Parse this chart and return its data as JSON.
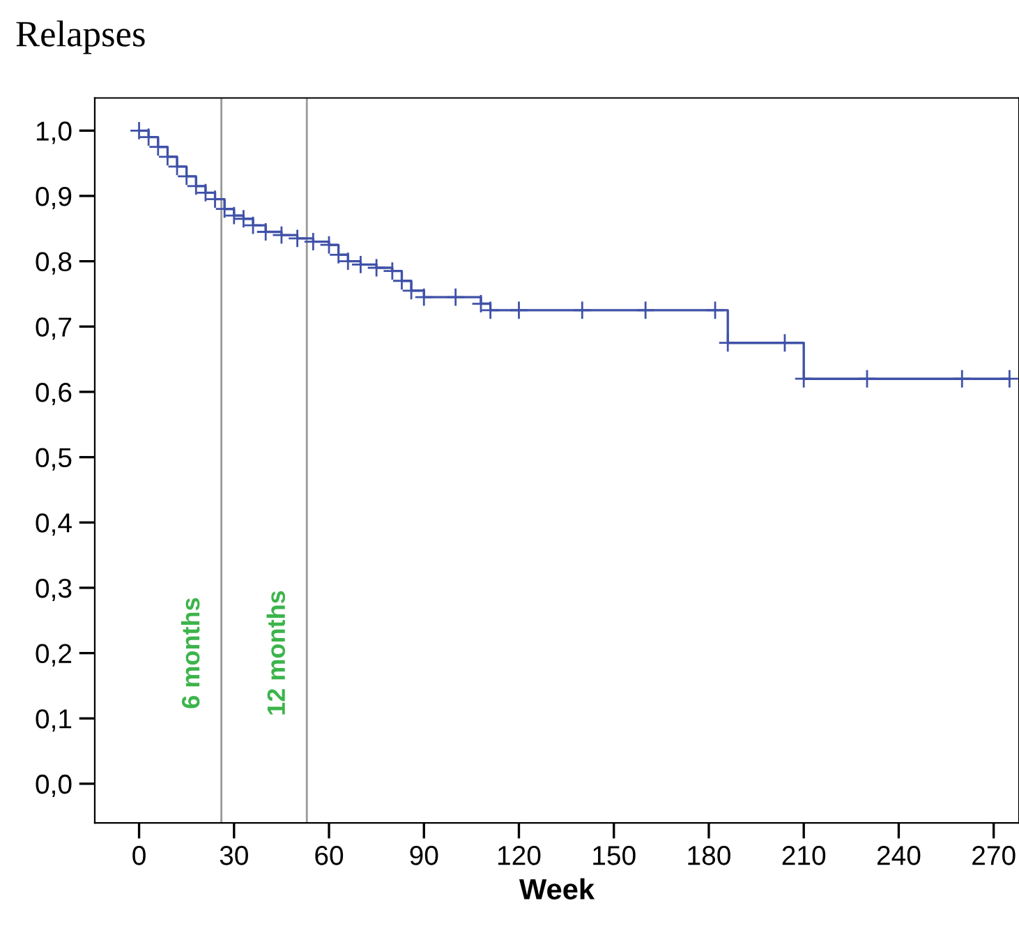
{
  "chart_data": {
    "type": "step",
    "title": "Relapses",
    "xlabel": "Week",
    "x": [
      0,
      3,
      6,
      9,
      12,
      15,
      18,
      21,
      24,
      27,
      30,
      33,
      36,
      40,
      45,
      50,
      55,
      60,
      63,
      66,
      70,
      75,
      80,
      83,
      86,
      90,
      100,
      108,
      111,
      120,
      140,
      160,
      182,
      186,
      204,
      210,
      230,
      260,
      275
    ],
    "series": [
      {
        "color": "#3f51a8",
        "values": [
          1.0,
          0.99,
          0.975,
          0.96,
          0.945,
          0.93,
          0.915,
          0.905,
          0.895,
          0.88,
          0.87,
          0.865,
          0.855,
          0.845,
          0.84,
          0.835,
          0.83,
          0.825,
          0.81,
          0.8,
          0.795,
          0.79,
          0.785,
          0.77,
          0.755,
          0.745,
          0.745,
          0.735,
          0.725,
          0.725,
          0.725,
          0.725,
          0.725,
          0.675,
          0.675,
          0.62,
          0.62,
          0.62,
          0.62
        ]
      }
    ],
    "marker": "cross",
    "line_style": "solid",
    "grid": false,
    "legend": false,
    "xlim": [
      -14,
      278
    ],
    "xticks": [
      0,
      30,
      60,
      90,
      120,
      150,
      180,
      210,
      240,
      270
    ],
    "ylim": [
      -0.06,
      1.05
    ],
    "yticks": [
      {
        "value": 0.0,
        "label": "0,0"
      },
      {
        "value": 0.1,
        "label": "0,1"
      },
      {
        "value": 0.2,
        "label": "0,2"
      },
      {
        "value": 0.3,
        "label": "0,3"
      },
      {
        "value": 0.4,
        "label": "0,4"
      },
      {
        "value": 0.5,
        "label": "0,5"
      },
      {
        "value": 0.6,
        "label": "0,6"
      },
      {
        "value": 0.7,
        "label": "0,7"
      },
      {
        "value": 0.8,
        "label": "0,8"
      },
      {
        "value": 0.9,
        "label": "0,9"
      },
      {
        "value": 1.0,
        "label": "1,0"
      }
    ],
    "ref_lines": [
      {
        "axis": "x",
        "value": 26,
        "label": "6 months",
        "color": "#999999"
      },
      {
        "axis": "x",
        "value": 53,
        "label": "12 months",
        "color": "#999999"
      }
    ]
  }
}
